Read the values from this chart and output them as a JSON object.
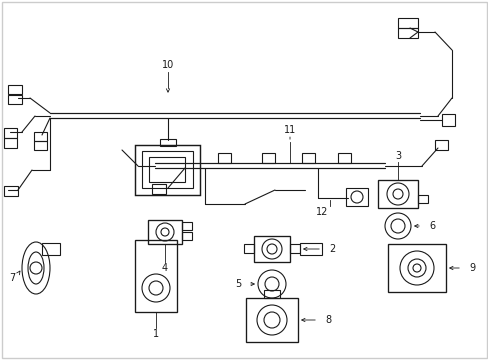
{
  "background_color": "#ffffff",
  "line_color": "#1a1a1a",
  "border_color": "#cccccc",
  "figsize": [
    4.89,
    3.6
  ],
  "dpi": 100
}
